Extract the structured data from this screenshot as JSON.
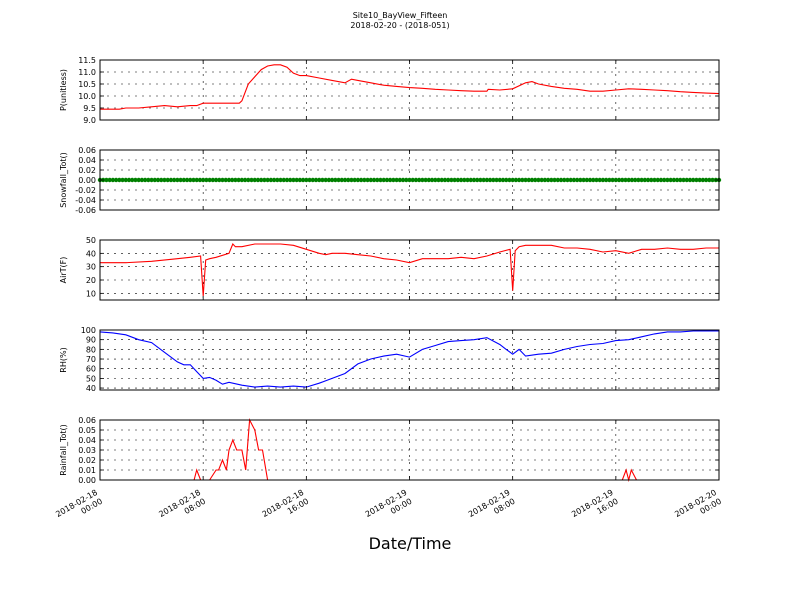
{
  "figure": {
    "title": "Site10_BayView_Fifteen",
    "subtitle": "2018-02-20 - (2018-051)",
    "xlabel": "Date/Time"
  },
  "chart_data": {
    "type": "line",
    "xlabel": "Date/Time",
    "xlim": [
      "2018-02-18 00:00",
      "2018-02-20 00:00"
    ],
    "xticks": [
      {
        "line1": "2018-02-18",
        "line2": "00:00",
        "hours": 0
      },
      {
        "line1": "2018-02-18",
        "line2": "08:00",
        "hours": 8
      },
      {
        "line1": "2018-02-18",
        "line2": "16:00",
        "hours": 16
      },
      {
        "line1": "2018-02-19",
        "line2": "00:00",
        "hours": 24
      },
      {
        "line1": "2018-02-19",
        "line2": "08:00",
        "hours": 32
      },
      {
        "line1": "2018-02-19",
        "line2": "16:00",
        "hours": 40
      },
      {
        "line1": "2018-02-20",
        "line2": "00:00",
        "hours": 48
      }
    ],
    "grid": true,
    "panels": [
      {
        "ylabel": "P(unitless)",
        "color": "#ff0000",
        "style": "line",
        "ylim": [
          9.0,
          11.5
        ],
        "yticks": [
          9.0,
          9.5,
          10.0,
          10.5,
          11.0,
          11.5
        ],
        "yticklabels": [
          "9.0",
          "9.5",
          "10.0",
          "10.5",
          "11.0",
          "11.5"
        ],
        "x_hours": [
          0,
          1.5,
          2,
          3,
          4,
          5,
          6,
          7,
          7.5,
          8,
          9,
          10,
          10.8,
          11,
          11.5,
          12,
          12.5,
          13,
          13.5,
          14,
          14.5,
          15,
          15.5,
          16,
          17,
          18,
          19,
          19.5,
          20,
          21,
          22,
          23,
          24,
          25,
          26,
          27,
          28,
          29,
          30,
          30.1,
          31,
          32,
          33,
          33.5,
          34,
          35,
          36,
          37,
          38,
          39,
          40,
          41,
          42,
          43,
          44,
          45,
          46,
          47,
          48
        ],
        "y": [
          9.45,
          9.45,
          9.5,
          9.5,
          9.55,
          9.6,
          9.55,
          9.6,
          9.6,
          9.7,
          9.7,
          9.7,
          9.7,
          9.8,
          10.5,
          10.8,
          11.1,
          11.25,
          11.3,
          11.3,
          11.2,
          10.95,
          10.85,
          10.85,
          10.75,
          10.65,
          10.55,
          10.7,
          10.65,
          10.55,
          10.45,
          10.4,
          10.35,
          10.32,
          10.28,
          10.25,
          10.22,
          10.2,
          10.2,
          10.28,
          10.25,
          10.3,
          10.55,
          10.6,
          10.5,
          10.4,
          10.32,
          10.28,
          10.2,
          10.2,
          10.25,
          10.3,
          10.28,
          10.25,
          10.22,
          10.18,
          10.15,
          10.12,
          10.1
        ]
      },
      {
        "ylabel": "Snowfall_Tot()",
        "color": "#008000",
        "style": "markers",
        "ylim": [
          -0.06,
          0.06
        ],
        "yticks": [
          -0.06,
          -0.04,
          -0.02,
          0.0,
          0.02,
          0.04,
          0.06
        ],
        "yticklabels": [
          "-0.06",
          "-0.04",
          "-0.02",
          "0.00",
          "0.02",
          "0.04",
          "0.06"
        ],
        "x_hours": [
          0,
          48
        ],
        "y": [
          0.0,
          0.0
        ]
      },
      {
        "ylabel": "AirT(F)",
        "color": "#ff0000",
        "style": "line",
        "ylim": [
          5,
          50
        ],
        "yticks": [
          10,
          20,
          30,
          40,
          50
        ],
        "yticklabels": [
          "10",
          "20",
          "30",
          "40",
          "50"
        ],
        "x_hours": [
          0,
          2,
          4,
          6,
          7,
          7.8,
          8.0,
          8.2,
          8.5,
          9,
          10,
          10.3,
          10.5,
          11,
          12,
          13,
          14,
          15,
          16,
          17,
          17.5,
          18,
          19,
          20,
          21,
          22,
          23,
          24,
          25,
          26,
          27,
          28,
          29,
          30,
          31,
          31.8,
          32,
          32.2,
          32.5,
          33,
          34,
          35,
          36,
          37,
          38,
          39,
          40,
          41,
          42,
          43,
          44,
          45,
          46,
          47,
          48
        ],
        "y": [
          33,
          33,
          34,
          36,
          37,
          38,
          8,
          35,
          36,
          37,
          40,
          47,
          45,
          45,
          47,
          47,
          47,
          46,
          43,
          40,
          39,
          40,
          40,
          39,
          38,
          36,
          35,
          33,
          36,
          36,
          36,
          37,
          36,
          38,
          41,
          43,
          12,
          42,
          45,
          46,
          46,
          46,
          44,
          44,
          43,
          41,
          42,
          40,
          43,
          43,
          44,
          43,
          43,
          44,
          44
        ]
      },
      {
        "ylabel": "RH(%)",
        "color": "#0000ff",
        "style": "line",
        "ylim": [
          38,
          100
        ],
        "yticks": [
          40,
          50,
          60,
          70,
          80,
          90,
          100
        ],
        "yticklabels": [
          "40",
          "50",
          "60",
          "70",
          "80",
          "90",
          "100"
        ],
        "x_hours": [
          0,
          1,
          2,
          3,
          4,
          5,
          6,
          6.5,
          7,
          7.5,
          8,
          8.5,
          9,
          9.5,
          10,
          11,
          12,
          13,
          14,
          15,
          16,
          17,
          18,
          19,
          20,
          21,
          22,
          23,
          24,
          25,
          26,
          27,
          28,
          29,
          30,
          31,
          31.5,
          32,
          32.5,
          33,
          34,
          35,
          36,
          37,
          38,
          39,
          40,
          41,
          42,
          43,
          44,
          45,
          46,
          47,
          48
        ],
        "y": [
          98,
          97,
          95,
          90,
          87,
          77,
          67,
          64,
          64,
          57,
          50,
          51,
          48,
          44,
          46,
          43,
          41,
          42,
          41,
          42,
          41,
          45,
          50,
          55,
          65,
          70,
          73,
          75,
          72,
          80,
          84,
          88,
          89,
          90,
          92,
          85,
          80,
          75,
          80,
          73,
          75,
          76,
          80,
          83,
          85,
          86,
          89,
          90,
          93,
          96,
          98,
          98,
          99,
          99,
          99
        ]
      },
      {
        "ylabel": "Rainfall_Tot()",
        "color": "#ff0000",
        "style": "line",
        "ylim": [
          0.0,
          0.06
        ],
        "yticks": [
          0.0,
          0.01,
          0.02,
          0.03,
          0.04,
          0.05,
          0.06
        ],
        "yticklabels": [
          "0.00",
          "0.01",
          "0.02",
          "0.03",
          "0.04",
          "0.05",
          "0.06"
        ],
        "x_hours": [
          0,
          7.3,
          7.5,
          7.8,
          8.5,
          9.0,
          9.2,
          9.5,
          9.8,
          10.0,
          10.3,
          10.6,
          11.0,
          11.3,
          11.6,
          12.0,
          12.3,
          12.6,
          13.0,
          13.5,
          40.5,
          40.8,
          41.0,
          41.2,
          41.6,
          48
        ],
        "y": [
          0,
          0,
          0.01,
          0,
          0,
          0.01,
          0.01,
          0.02,
          0.01,
          0.03,
          0.04,
          0.03,
          0.03,
          0.01,
          0.06,
          0.05,
          0.03,
          0.03,
          0,
          0,
          0,
          0.01,
          0,
          0.01,
          0,
          0
        ]
      }
    ]
  }
}
